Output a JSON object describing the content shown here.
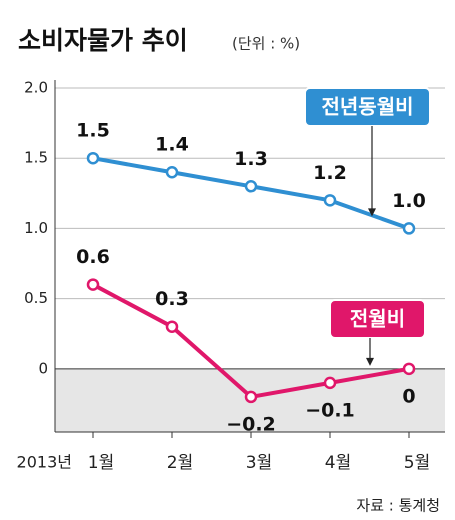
{
  "chart_data": {
    "type": "line",
    "title": "소비자물가 추이",
    "subtitle": "(단위 : %)",
    "x_label": "2013년",
    "categories": [
      "1월",
      "2월",
      "3월",
      "4월",
      "5월"
    ],
    "series": [
      {
        "name": "전년동월비",
        "color": "#2f8fd2",
        "values": [
          1.5,
          1.4,
          1.3,
          1.2,
          1.0
        ],
        "value_labels": [
          "1.5",
          "1.4",
          "1.3",
          "1.2",
          "1.0"
        ]
      },
      {
        "name": "전월비",
        "color": "#e0176a",
        "values": [
          0.6,
          0.3,
          -0.2,
          -0.1,
          0
        ],
        "value_labels": [
          "0.6",
          "0.3",
          "−0.2",
          "−0.1",
          "0"
        ]
      }
    ],
    "ylim": [
      -0.45,
      2.0
    ],
    "yticks": [
      {
        "value": 2,
        "label": "2.0"
      },
      1.5,
      {
        "value": 1,
        "label": "1.0"
      },
      0.5,
      0
    ],
    "grid": true,
    "source": "자료 : 통계청"
  }
}
